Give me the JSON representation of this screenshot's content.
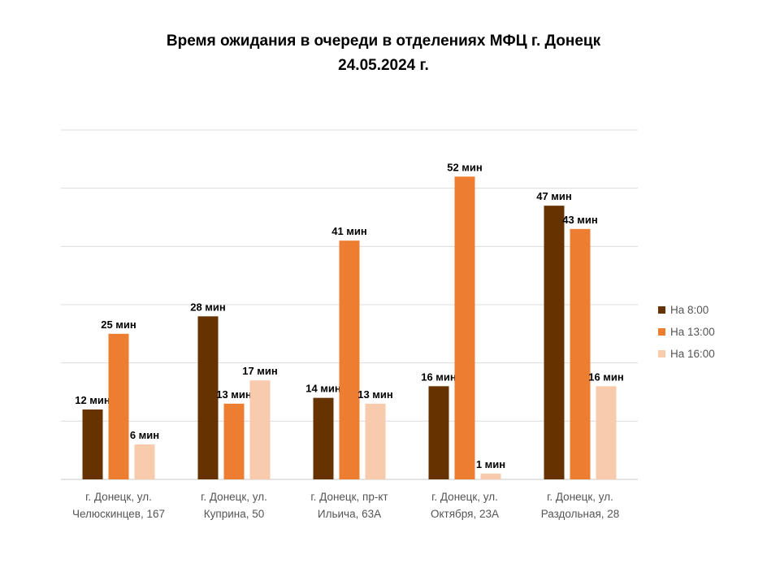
{
  "chart_data": {
    "type": "bar",
    "title": "Время ожидания в очереди в отделениях МФЦ г. Донецк",
    "subtitle": "24.05.2024 г.",
    "xlabel": "",
    "ylabel": "",
    "ylim": [
      0,
      60
    ],
    "grid": true,
    "legend_position": "right",
    "unit_suffix": " мин",
    "categories": [
      [
        "г. Донецк, ул.",
        "Челюскинцев, 167"
      ],
      [
        "г. Донецк, ул.",
        "Куприна, 50"
      ],
      [
        "г. Донецк, пр-кт",
        "Ильича, 63А"
      ],
      [
        "г. Донецк, ул.",
        "Октября, 23А"
      ],
      [
        "г. Донецк, ул.",
        "Раздольная, 28"
      ]
    ],
    "series": [
      {
        "name": "На 8:00",
        "color": "#663300",
        "values": [
          12,
          28,
          14,
          16,
          47
        ]
      },
      {
        "name": "На 13:00",
        "color": "#ED7D31",
        "values": [
          25,
          13,
          41,
          52,
          43
        ]
      },
      {
        "name": "На 16:00",
        "color": "#F8CBAD",
        "values": [
          6,
          17,
          13,
          1,
          16
        ]
      }
    ]
  }
}
